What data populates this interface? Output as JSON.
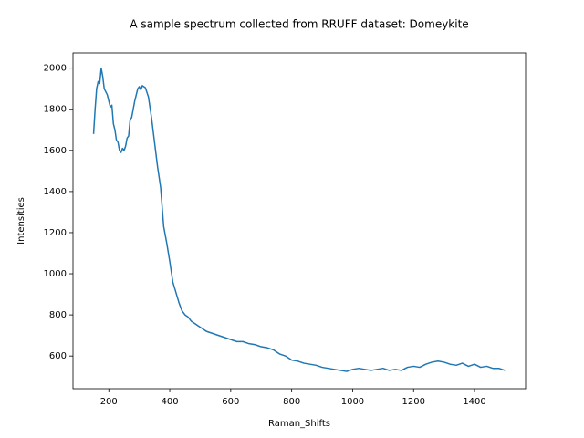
{
  "chart_data": {
    "type": "line",
    "title": "A sample spectrum collected from RRUFF dataset: Domeykite",
    "x_label": "Raman_Shifts",
    "y_label": "Intensities",
    "x": [
      150,
      155,
      160,
      165,
      170,
      175,
      180,
      185,
      195,
      205,
      210,
      215,
      220,
      225,
      230,
      235,
      240,
      245,
      250,
      255,
      260,
      265,
      270,
      275,
      280,
      285,
      290,
      295,
      300,
      305,
      310,
      320,
      330,
      340,
      350,
      360,
      370,
      380,
      390,
      400,
      410,
      420,
      430,
      440,
      450,
      460,
      470,
      480,
      500,
      520,
      540,
      560,
      580,
      600,
      620,
      640,
      660,
      680,
      700,
      720,
      740,
      760,
      780,
      800,
      820,
      840,
      860,
      880,
      900,
      920,
      940,
      960,
      980,
      1000,
      1020,
      1040,
      1060,
      1080,
      1100,
      1120,
      1140,
      1160,
      1180,
      1200,
      1220,
      1240,
      1260,
      1280,
      1300,
      1320,
      1340,
      1360,
      1380,
      1400,
      1420,
      1440,
      1460,
      1480,
      1500
    ],
    "series": [
      {
        "name": "Domeykite",
        "color": "#1f77b4",
        "values": [
          1680,
          1800,
          1900,
          1935,
          1925,
          2000,
          1960,
          1900,
          1870,
          1810,
          1820,
          1730,
          1700,
          1650,
          1640,
          1600,
          1590,
          1610,
          1600,
          1620,
          1660,
          1670,
          1750,
          1760,
          1800,
          1840,
          1870,
          1900,
          1910,
          1895,
          1915,
          1905,
          1860,
          1760,
          1640,
          1520,
          1420,
          1230,
          1150,
          1060,
          960,
          910,
          860,
          820,
          800,
          790,
          770,
          760,
          740,
          720,
          710,
          700,
          690,
          680,
          670,
          670,
          660,
          655,
          645,
          640,
          630,
          610,
          600,
          580,
          575,
          565,
          560,
          555,
          545,
          540,
          535,
          530,
          525,
          535,
          540,
          535,
          530,
          535,
          540,
          530,
          535,
          530,
          545,
          550,
          545,
          560,
          570,
          575,
          570,
          560,
          555,
          565,
          550,
          560,
          545,
          550,
          540,
          540,
          530
        ]
      }
    ],
    "xlim": [
      82.5,
      1567.5
    ],
    "ylim": [
      441,
      2074
    ],
    "xticks": [
      200,
      400,
      600,
      800,
      1000,
      1200,
      1400
    ],
    "yticks": [
      600,
      800,
      1000,
      1200,
      1400,
      1600,
      1800,
      2000
    ]
  }
}
